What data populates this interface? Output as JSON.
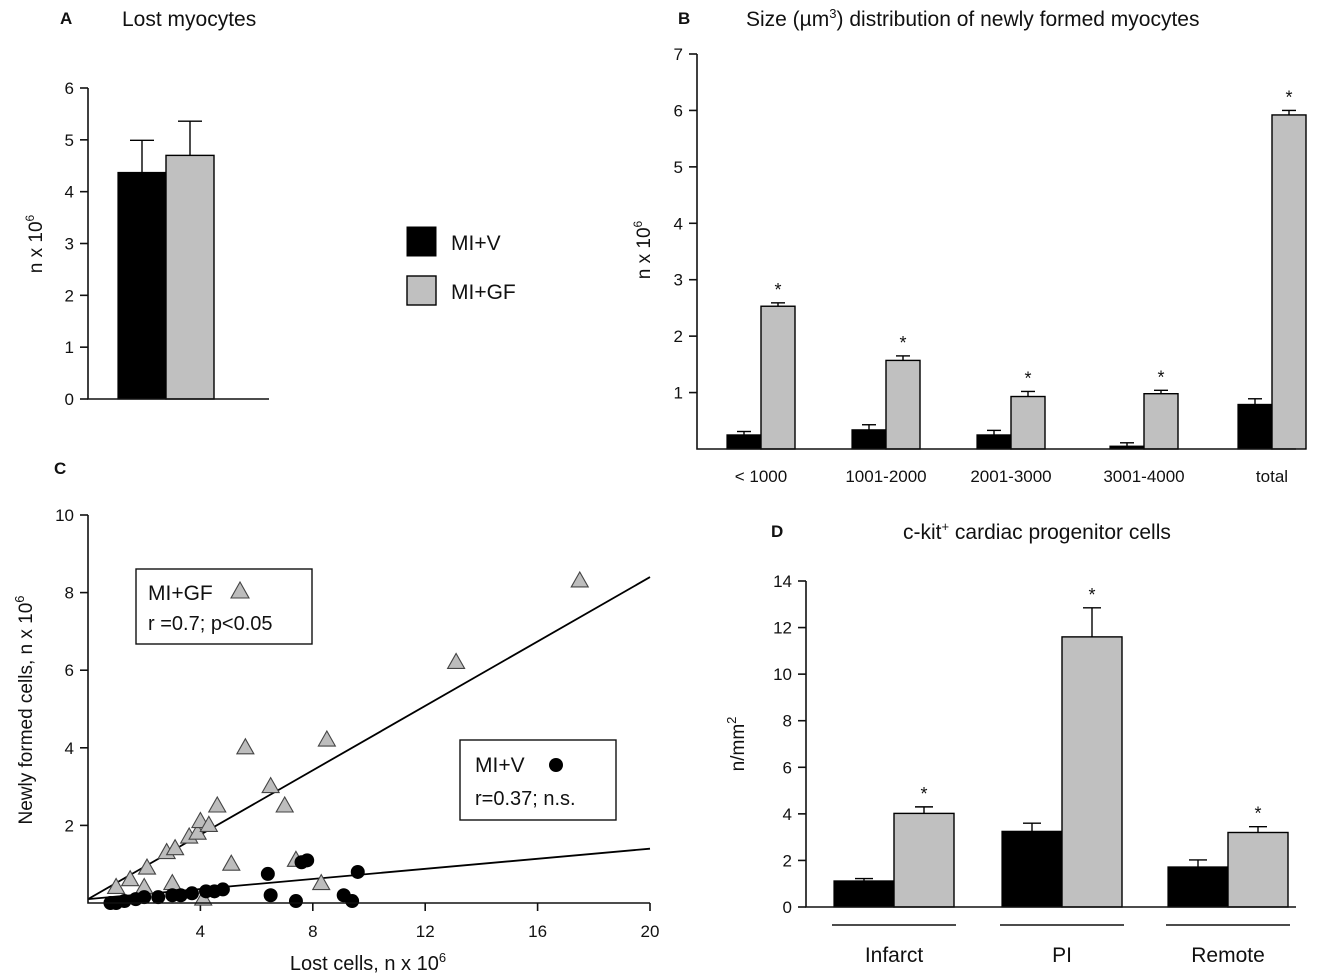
{
  "legend": {
    "items": [
      {
        "label": "MI+V",
        "color": "#000000"
      },
      {
        "label": "MI+GF",
        "color": "#c0c0c0"
      }
    ]
  },
  "chart_data": [
    {
      "panel": "A",
      "type": "bar",
      "title": "Lost myocytes",
      "ylabel_main": "n x 10",
      "ylabel_exp": "6",
      "ylim": [
        0,
        6
      ],
      "yticks": [
        0,
        1,
        2,
        3,
        4,
        5,
        6
      ],
      "categories": [
        ""
      ],
      "series": [
        {
          "name": "MI+V",
          "values": [
            4.37
          ],
          "errors": [
            0.62
          ]
        },
        {
          "name": "MI+GF",
          "values": [
            4.7
          ],
          "errors": [
            0.66
          ]
        }
      ]
    },
    {
      "panel": "B",
      "type": "bar",
      "title_pre": "Size (µm",
      "title_sup": "3",
      "title_post": ")  distribution of newly formed myocytes",
      "ylabel_main": "n x 10",
      "ylabel_exp": "6",
      "ylim": [
        0,
        7
      ],
      "yticks": [
        1,
        2,
        3,
        4,
        5,
        6,
        7
      ],
      "categories": [
        "< 1000",
        "1001-2000",
        "2001-3000",
        "3001-4000",
        "total"
      ],
      "series": [
        {
          "name": "MI+V",
          "values": [
            0.25,
            0.34,
            0.25,
            0.05,
            0.79
          ],
          "errors": [
            0.06,
            0.09,
            0.08,
            0.06,
            0.1
          ]
        },
        {
          "name": "MI+GF",
          "values": [
            2.53,
            1.57,
            0.93,
            0.98,
            5.92
          ],
          "errors": [
            0.06,
            0.08,
            0.09,
            0.06,
            0.08
          ]
        }
      ],
      "significance": [
        "*",
        "*",
        "*",
        "*",
        "*"
      ]
    },
    {
      "panel": "C",
      "type": "scatter",
      "xlabel_main": "Lost cells, n x 10",
      "xlabel_exp": "6",
      "ylabel_main": "Newly formed cells, n x 10",
      "ylabel_exp": "6",
      "xlim": [
        0,
        20
      ],
      "ylim": [
        0,
        10
      ],
      "xticks": [
        4,
        8,
        12,
        16,
        20
      ],
      "yticks": [
        2,
        4,
        6,
        8,
        10
      ],
      "series": [
        {
          "name": "MI+GF",
          "stat": "r =0.7; p<0.05",
          "marker": "triangle",
          "points": [
            [
              1.0,
              0.4
            ],
            [
              1.5,
              0.6
            ],
            [
              2.1,
              0.9
            ],
            [
              2.0,
              0.4
            ],
            [
              2.8,
              1.3
            ],
            [
              3.1,
              1.4
            ],
            [
              3.0,
              0.5
            ],
            [
              3.6,
              1.7
            ],
            [
              3.9,
              1.8
            ],
            [
              4.0,
              2.1
            ],
            [
              4.3,
              2.0
            ],
            [
              4.6,
              2.5
            ],
            [
              4.1,
              0.1
            ],
            [
              5.1,
              1.0
            ],
            [
              5.6,
              4.0
            ],
            [
              6.5,
              3.0
            ],
            [
              7.0,
              2.5
            ],
            [
              7.4,
              1.1
            ],
            [
              8.3,
              0.5
            ],
            [
              8.5,
              4.2
            ],
            [
              13.1,
              6.2
            ],
            [
              17.5,
              8.3
            ]
          ],
          "regression": [
            [
              0,
              0.1
            ],
            [
              20,
              8.4
            ]
          ]
        },
        {
          "name": "MI+V",
          "stat": "r=0.37; n.s.",
          "marker": "circle",
          "points": [
            [
              0.8,
              0.0
            ],
            [
              1.0,
              0.0
            ],
            [
              1.3,
              0.05
            ],
            [
              1.7,
              0.1
            ],
            [
              2.0,
              0.15
            ],
            [
              2.5,
              0.15
            ],
            [
              3.0,
              0.2
            ],
            [
              3.3,
              0.2
            ],
            [
              3.7,
              0.25
            ],
            [
              4.2,
              0.3
            ],
            [
              4.5,
              0.3
            ],
            [
              4.8,
              0.35
            ],
            [
              6.4,
              0.75
            ],
            [
              6.5,
              0.2
            ],
            [
              7.4,
              0.05
            ],
            [
              7.6,
              1.05
            ],
            [
              7.8,
              1.1
            ],
            [
              9.1,
              0.2
            ],
            [
              9.4,
              0.05
            ],
            [
              9.6,
              0.8
            ]
          ],
          "regression": [
            [
              0,
              0.1
            ],
            [
              20,
              1.4
            ]
          ]
        }
      ]
    },
    {
      "panel": "D",
      "type": "bar",
      "title_pre": "c-kit",
      "title_sup": "+",
      "title_post": " cardiac progenitor cells",
      "ylabel_main": "n/mm",
      "ylabel_exp": "2",
      "ylim": [
        0,
        14
      ],
      "yticks": [
        0,
        2,
        4,
        6,
        8,
        10,
        12,
        14
      ],
      "categories": [
        "Infarct",
        "PI",
        "Remote"
      ],
      "series": [
        {
          "name": "MI+V",
          "values": [
            1.12,
            3.25,
            1.72
          ],
          "errors": [
            0.1,
            0.35,
            0.3
          ]
        },
        {
          "name": "MI+GF",
          "values": [
            4.02,
            11.6,
            3.2
          ],
          "errors": [
            0.28,
            1.25,
            0.25
          ]
        }
      ],
      "significance": [
        "*",
        "*",
        "*"
      ]
    }
  ]
}
